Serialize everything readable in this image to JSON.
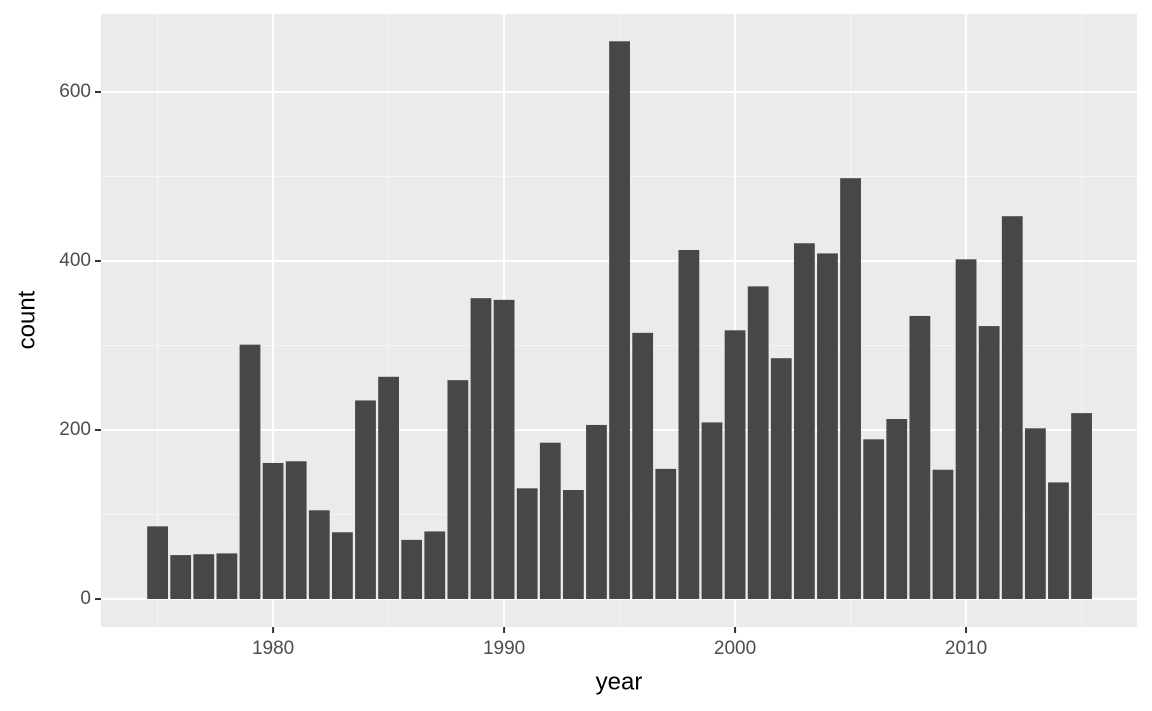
{
  "chart_data": {
    "type": "bar",
    "x_label": "year",
    "y_label": "count",
    "x": [
      1975,
      1976,
      1977,
      1978,
      1979,
      1980,
      1981,
      1982,
      1983,
      1984,
      1985,
      1986,
      1987,
      1988,
      1989,
      1990,
      1991,
      1992,
      1993,
      1994,
      1995,
      1996,
      1997,
      1998,
      1999,
      2000,
      2001,
      2002,
      2003,
      2004,
      2005,
      2006,
      2007,
      2008,
      2009,
      2010,
      2011,
      2012,
      2013,
      2014,
      2015
    ],
    "values": [
      86,
      52,
      53,
      54,
      301,
      161,
      163,
      105,
      79,
      235,
      263,
      70,
      80,
      259,
      356,
      354,
      131,
      185,
      129,
      206,
      660,
      315,
      154,
      413,
      209,
      318,
      370,
      285,
      421,
      409,
      498,
      189,
      213,
      335,
      153,
      402,
      323,
      453,
      202,
      138,
      220
    ],
    "color": "#474747",
    "xlim": [
      1972.55,
      2017.4
    ],
    "xticks": [
      1980,
      1990,
      2000,
      2010
    ],
    "xminor": [
      1975,
      1985,
      1995,
      2005,
      2015
    ],
    "ylim": [
      -33.1,
      692.3
    ],
    "yticks": [
      0,
      200,
      400,
      600
    ],
    "yminor": [
      100,
      300,
      500
    ],
    "grid": true
  }
}
